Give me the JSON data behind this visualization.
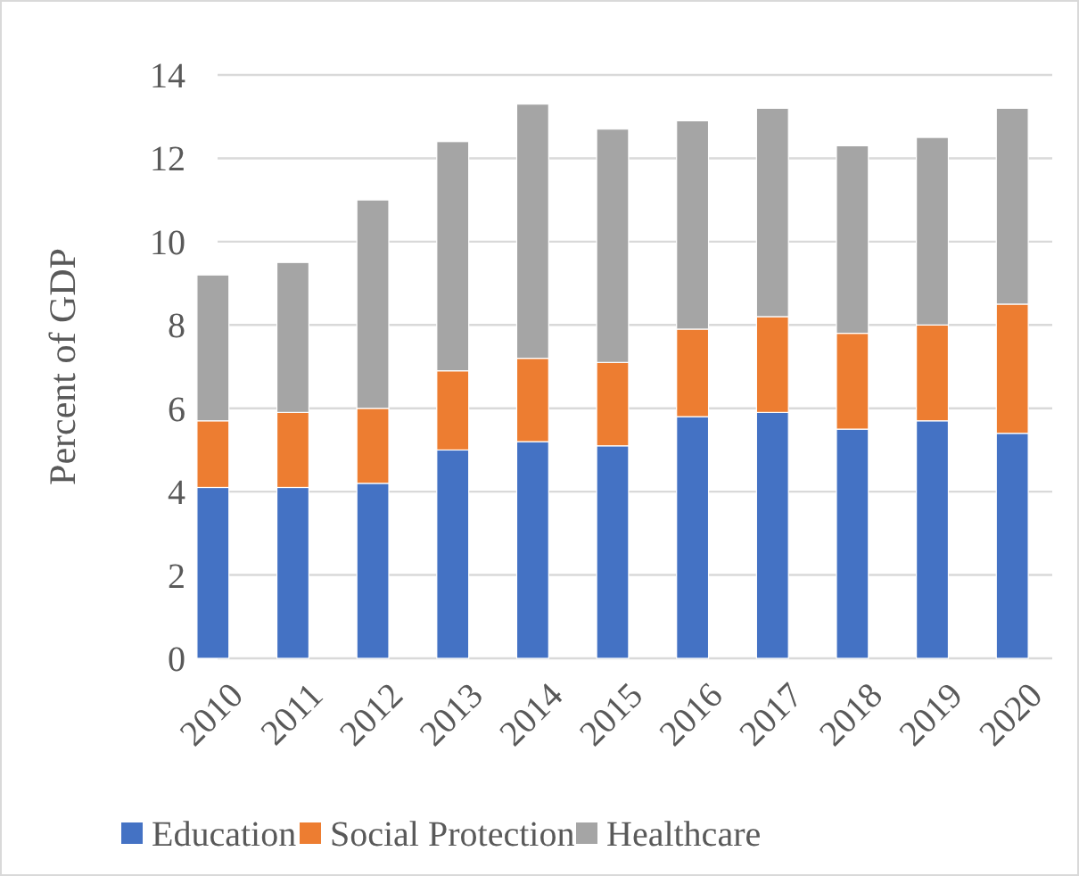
{
  "chart_data": {
    "type": "bar",
    "stacked": true,
    "ylabel": "Percent of GDP",
    "categories": [
      "2010",
      "2011",
      "2012",
      "2013",
      "2014",
      "2015",
      "2016",
      "2017",
      "2018",
      "2019",
      "2020"
    ],
    "series": [
      {
        "name": "Education",
        "color": "#4472c4",
        "values": [
          4.1,
          4.1,
          4.2,
          5.0,
          5.2,
          5.1,
          5.8,
          5.9,
          5.5,
          5.7,
          5.4
        ]
      },
      {
        "name": "Social Protection",
        "color": "#ed7d31",
        "values": [
          1.6,
          1.8,
          1.8,
          1.9,
          2.0,
          2.0,
          2.1,
          2.3,
          2.3,
          2.3,
          3.1
        ]
      },
      {
        "name": "Healthcare",
        "color": "#a5a5a5",
        "values": [
          3.5,
          3.6,
          5.0,
          5.5,
          6.1,
          5.6,
          5.0,
          5.0,
          4.5,
          4.5,
          4.7
        ]
      }
    ],
    "ylim": [
      0,
      14
    ],
    "yticks": [
      0,
      2,
      4,
      6,
      8,
      10,
      12,
      14
    ],
    "grid": "y",
    "legend": "bottom"
  }
}
